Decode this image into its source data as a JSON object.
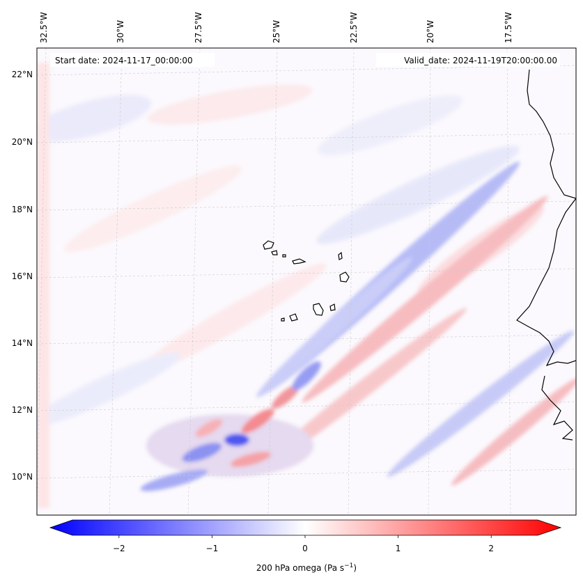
{
  "header": {
    "start_date": "Start date: 2024-11-17_00:00:00",
    "valid_date": "Valid_date: 2024-11-19T20:00:00.00"
  },
  "axes": {
    "lon_labels": [
      "32.5°W",
      "30°W",
      "27.5°W",
      "25°W",
      "22.5°W",
      "20°W",
      "17.5°W"
    ],
    "lat_labels": [
      "22°N",
      "20°N",
      "18°N",
      "16°N",
      "14°N",
      "12°N",
      "10°N"
    ]
  },
  "colorbar": {
    "ticks": [
      "−2",
      "−1",
      "0",
      "1",
      "2"
    ],
    "tick_values": [
      -2,
      -1,
      0,
      1,
      2
    ],
    "range": [
      -2.5,
      2.5
    ],
    "label_prefix": "200 hPa omega (Pa s",
    "label_exp": "−1",
    "label_suffix": ")"
  },
  "colors": {
    "negative": "#0000ff",
    "neutral": "#ffffff",
    "positive": "#ff0000",
    "coastline": "#000000"
  }
}
